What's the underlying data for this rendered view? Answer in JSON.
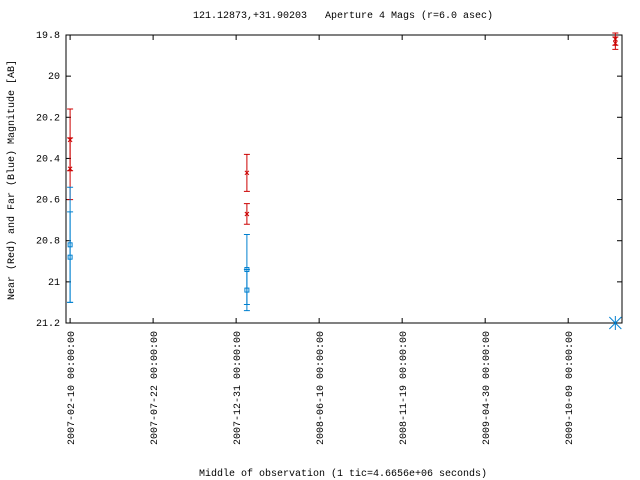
{
  "chart_data": {
    "type": "errorbar",
    "title": "121.12873,+31.90203   Aperture 4 Mags (r=6.0 asec)",
    "x_label": "Middle of observation (1 tic=4.6656e+06 seconds)",
    "y_label": "Near (Red) and Far (Blue) Magnitude [AB]",
    "xlim": [
      "2007-02-02",
      "2010-01-22"
    ],
    "xticks": [
      {
        "value": "2007-02-10",
        "label": "2007-02-10 00:00:00"
      },
      {
        "value": "2007-07-22",
        "label": "2007-07-22 00:00:00"
      },
      {
        "value": "2007-12-31",
        "label": "2007-12-31 00:00:00"
      },
      {
        "value": "2008-06-10",
        "label": "2008-06-10 00:00:00"
      },
      {
        "value": "2008-11-19",
        "label": "2008-11-19 00:00:00"
      },
      {
        "value": "2009-04-30",
        "label": "2009-04-30 00:00:00"
      },
      {
        "value": "2009-10-09",
        "label": "2009-10-09 00:00:00"
      }
    ],
    "ylim": [
      21.2,
      19.8
    ],
    "yticks": [
      19.8,
      20,
      20.2,
      20.4,
      20.6,
      20.8,
      21,
      21.2
    ],
    "series": [
      {
        "color": "#cc0000",
        "marker": "x",
        "x": [
          "2007-02-10",
          "2007-02-10",
          "2008-01-21",
          "2008-01-21",
          "2010-01-09",
          "2010-01-09"
        ],
        "values": [
          20.31,
          20.45,
          20.47,
          20.67,
          19.82,
          19.84
        ],
        "errors": [
          0.15,
          0.15,
          0.09,
          0.05,
          0.03,
          0.03
        ]
      },
      {
        "color": "#0080d0",
        "marker": "square",
        "x": [
          "2007-02-10",
          "2007-02-10",
          "2008-01-21",
          "2008-01-21"
        ],
        "values": [
          20.82,
          20.88,
          20.94,
          21.04
        ],
        "errors": [
          0.28,
          0.22,
          0.17,
          0.1
        ]
      },
      {
        "color": "#0080d0",
        "marker": "asterisk",
        "x": [
          "2010-01-09"
        ],
        "values": [
          21.2
        ]
      }
    ]
  }
}
